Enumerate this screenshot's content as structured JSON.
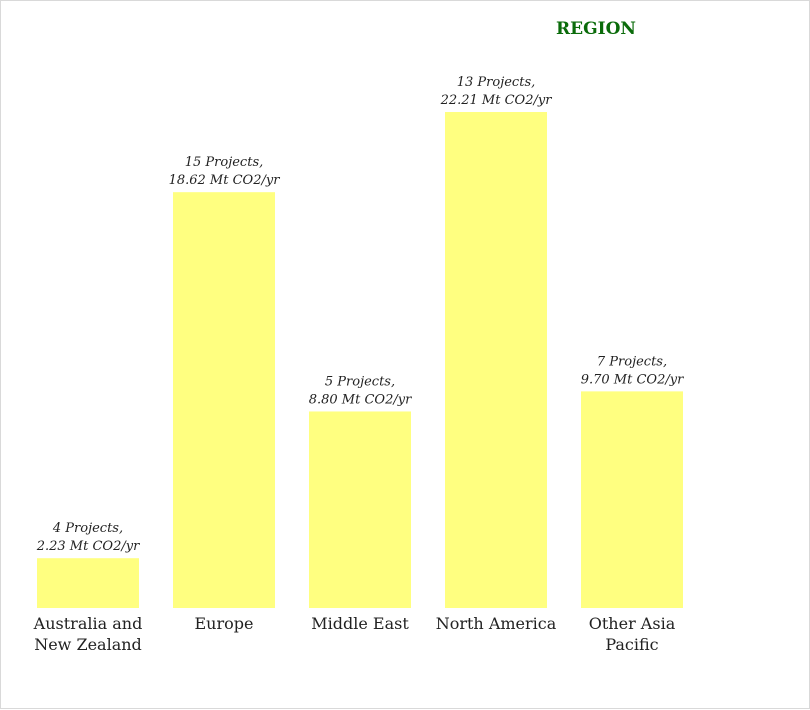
{
  "chart_data": {
    "type": "bar",
    "title": "REGION",
    "xlabel": "",
    "ylabel": "",
    "categories": [
      [
        "Australia and",
        "New Zealand"
      ],
      [
        "Europe"
      ],
      [
        "Middle East"
      ],
      [
        "North America"
      ],
      [
        "Other Asia",
        "Pacific"
      ]
    ],
    "values": [
      2.23,
      18.62,
      8.8,
      22.21,
      9.7
    ],
    "data_labels": [
      [
        "4 Projects,",
        "2.23 Mt CO2/yr"
      ],
      [
        "15 Projects,",
        "18.62 Mt CO2/yr"
      ],
      [
        "5 Projects,",
        "8.80 Mt CO2/yr"
      ],
      [
        "13 Projects,",
        "22.21 Mt CO2/yr"
      ],
      [
        "7 Projects,",
        "9.70 Mt CO2/yr"
      ]
    ],
    "ylim": [
      0,
      22.21
    ],
    "grid": false,
    "bar_color": "#ffff80",
    "title_color": "#0a6b0a"
  }
}
